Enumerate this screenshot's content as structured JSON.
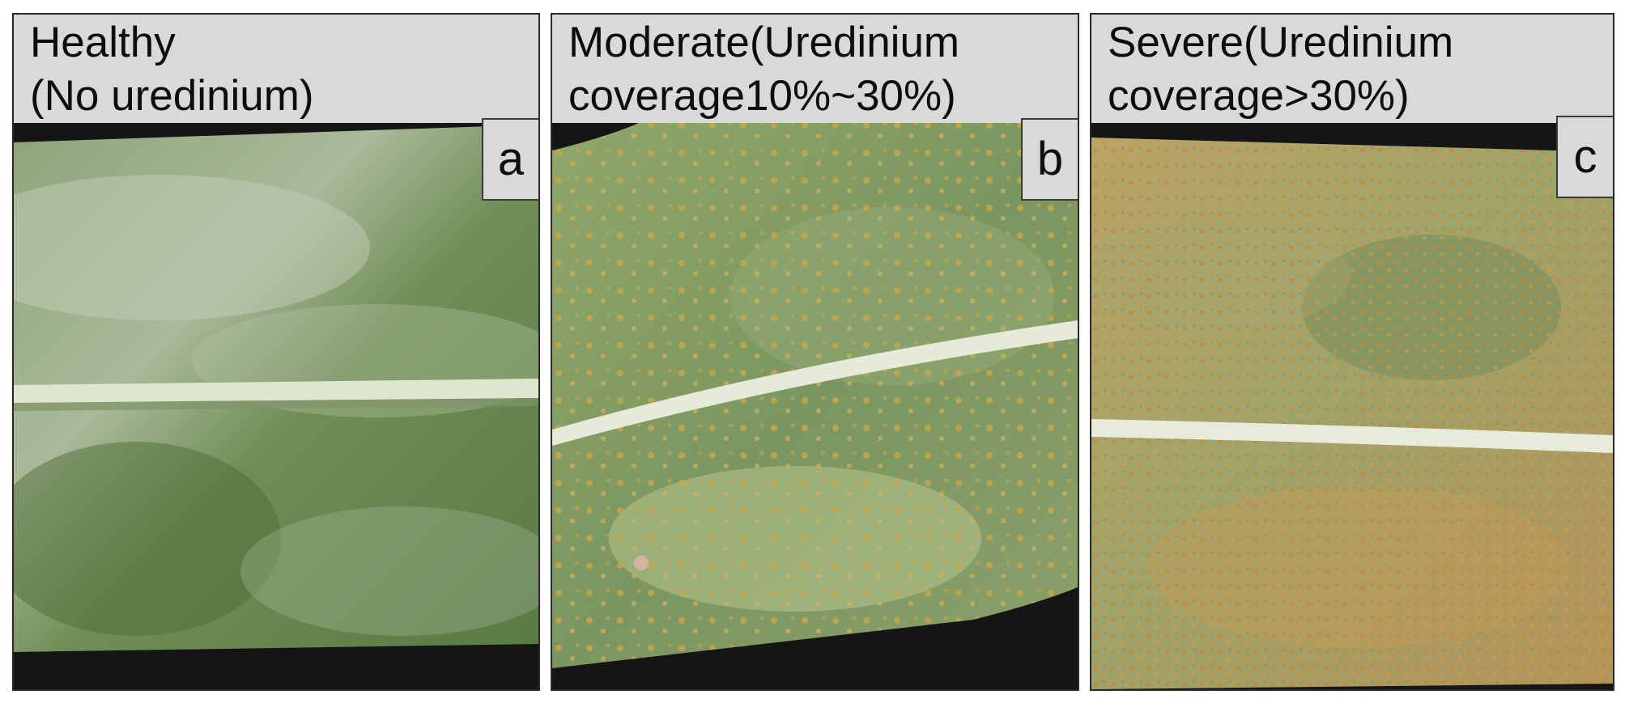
{
  "panels": [
    {
      "title_line1": "Healthy",
      "title_line2": "(No uredinium)",
      "letter": "a",
      "leaf_condition": "healthy",
      "colors": {
        "leaf": "#5f7f4a",
        "leaf_light": "#b9c7b0",
        "midrib": "#dfe6cf"
      }
    },
    {
      "title_line1": "Moderate(Uredinium",
      "title_line2": "coverage10%~30%)",
      "letter": "b",
      "leaf_condition": "moderate rust",
      "colors": {
        "leaf": "#7d9a5e",
        "leaf_light": "#c6cf9a",
        "spots": "#c9a64a",
        "midrib": "#e6ead9"
      }
    },
    {
      "title_line1": "Severe(Uredinium",
      "title_line2": "coverage>30%)",
      "letter": "c",
      "leaf_condition": "severe rust",
      "colors": {
        "leaf": "#8e9a63",
        "leaf_light": "#c9b47a",
        "spots": "#c18b3d",
        "midrib": "#e8ebdc"
      }
    }
  ],
  "background_color": "#111111"
}
